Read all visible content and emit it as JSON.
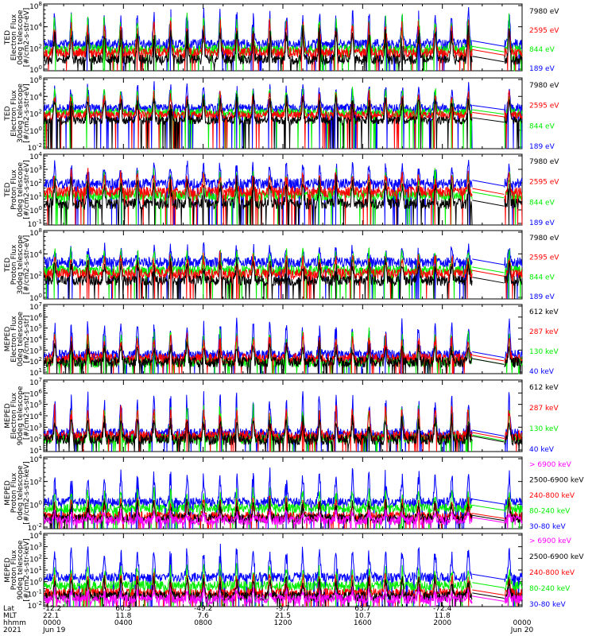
{
  "chart_data": {
    "type": "line",
    "x_axis": {
      "row_labels": [
        "Lat",
        "MLT",
        "hhmm",
        "2021"
      ],
      "ticks": [
        {
          "lat": "-12.2",
          "mlt": "22.1",
          "hhmm": "0000",
          "date": "Jun 19"
        },
        {
          "lat": "60.5",
          "mlt": "11.8",
          "hhmm": "0400",
          "date": ""
        },
        {
          "lat": "-49.2",
          "mlt": "7.6",
          "hhmm": "0800",
          "date": ""
        },
        {
          "lat": "-9.7",
          "mlt": "21.5",
          "hhmm": "1200",
          "date": ""
        },
        {
          "lat": "63.7",
          "mlt": "10.7",
          "hhmm": "1600",
          "date": ""
        },
        {
          "lat": "-72.4",
          "mlt": "11.8",
          "hhmm": "2000",
          "date": ""
        },
        {
          "lat": "",
          "mlt": "",
          "hhmm": "0000",
          "date": "Jun 20"
        }
      ],
      "range_hours": [
        0,
        24
      ],
      "data_gap_hours": [
        21.5,
        23.1
      ]
    },
    "panels": [
      {
        "id": "ted-electron-0deg",
        "ylabel": [
          "TED",
          "Electron Flux",
          "0deg telescope",
          "[#/cm2-s-str-eV]"
        ],
        "ytick_labels": [
          "10^8",
          "10^4",
          "10^2",
          "10^0"
        ],
        "ylim_log10": [
          0,
          6
        ],
        "series": [
          {
            "name": "7980 eV",
            "color": "#000000",
            "baseline_log10": 1.0,
            "spike_log10": 4.0
          },
          {
            "name": "2595 eV",
            "color": "#ff0000",
            "baseline_log10": 1.6,
            "spike_log10": 4.6
          },
          {
            "name": "844 eV",
            "color": "#00ee00",
            "baseline_log10": 1.9,
            "spike_log10": 5.0
          },
          {
            "name": "189 eV",
            "color": "#0000ff",
            "baseline_log10": 2.4,
            "spike_log10": 5.6
          }
        ]
      },
      {
        "id": "ted-electron-30deg",
        "ylabel": [
          "TED",
          "Electron Flux",
          "30deg telescope",
          "[#/cm2-s-str-eV]"
        ],
        "ytick_labels": [
          "10^8",
          "10^4",
          "10^2",
          "10^0",
          "10^-2"
        ],
        "ylim_log10": [
          -2,
          6
        ],
        "series": [
          {
            "name": "7980 eV",
            "color": "#000000",
            "baseline_log10": 1.2,
            "spike_log10": 4.0
          },
          {
            "name": "2595 eV",
            "color": "#ff0000",
            "baseline_log10": 1.8,
            "spike_log10": 4.5
          },
          {
            "name": "844 eV",
            "color": "#00ee00",
            "baseline_log10": 2.1,
            "spike_log10": 4.9
          },
          {
            "name": "189 eV",
            "color": "#0000ff",
            "baseline_log10": 2.6,
            "spike_log10": 5.4
          }
        ]
      },
      {
        "id": "ted-proton-0deg",
        "ylabel": [
          "TED",
          "Proton Flux",
          "0deg telescope",
          "[#/cm2-s-str-eV]"
        ],
        "ytick_labels": [
          "10^4",
          "10^3",
          "10^2",
          "10^1",
          "10^0",
          "10^-1"
        ],
        "ylim_log10": [
          -1.5,
          4.5
        ],
        "series": [
          {
            "name": "7980 eV",
            "color": "#000000",
            "baseline_log10": 0.3,
            "spike_log10": 2.5
          },
          {
            "name": "2595 eV",
            "color": "#ff0000",
            "baseline_log10": 1.3,
            "spike_log10": 3.0
          },
          {
            "name": "844 eV",
            "color": "#00ee00",
            "baseline_log10": 1.0,
            "spike_log10": 3.2
          },
          {
            "name": "189 eV",
            "color": "#0000ff",
            "baseline_log10": 2.0,
            "spike_log10": 3.8
          }
        ]
      },
      {
        "id": "ted-proton-30deg",
        "ylabel": [
          "TED",
          "Proton Flux",
          "30deg telescope",
          "[#/cm2-s-str-eV]"
        ],
        "ytick_labels": [
          "10^8",
          "10^4",
          "10^2",
          "10^0"
        ],
        "ylim_log10": [
          -1,
          5
        ],
        "series": [
          {
            "name": "7980 eV",
            "color": "#000000",
            "baseline_log10": 0.6,
            "spike_log10": 2.4
          },
          {
            "name": "2595 eV",
            "color": "#ff0000",
            "baseline_log10": 1.2,
            "spike_log10": 2.8
          },
          {
            "name": "844 eV",
            "color": "#00ee00",
            "baseline_log10": 1.5,
            "spike_log10": 3.4
          },
          {
            "name": "189 eV",
            "color": "#0000ff",
            "baseline_log10": 2.2,
            "spike_log10": 3.6
          }
        ]
      },
      {
        "id": "meped-electron-0deg",
        "ylabel": [
          "MEPED",
          "Electron Flux",
          "0deg telescope",
          "[#/cm2-s-str]"
        ],
        "ytick_labels": [
          "10^7",
          "10^6",
          "10^5",
          "10^4",
          "10^3",
          "10^2",
          "10^1"
        ],
        "ylim_log10": [
          1,
          7
        ],
        "series": [
          {
            "name": "612 keV",
            "color": "#000000",
            "baseline_log10": 2.0,
            "spike_log10": 3.6
          },
          {
            "name": "287 keV",
            "color": "#ff0000",
            "baseline_log10": 2.3,
            "spike_log10": 4.5
          },
          {
            "name": "130 keV",
            "color": "#00ee00",
            "baseline_log10": 2.0,
            "spike_log10": 4.8
          },
          {
            "name": "40 keV",
            "color": "#0000ff",
            "baseline_log10": 2.6,
            "spike_log10": 5.8
          }
        ]
      },
      {
        "id": "meped-electron-90deg",
        "ylabel": [
          "MEPED",
          "Electron Flux",
          "90deg telescope",
          "[#/cm2-s-str]"
        ],
        "ytick_labels": [
          "10^7",
          "10^6",
          "10^5",
          "10^4",
          "10^3",
          "10^2",
          "10^1"
        ],
        "ylim_log10": [
          1,
          7
        ],
        "series": [
          {
            "name": "612 keV",
            "color": "#000000",
            "baseline_log10": 2.0,
            "spike_log10": 4.0
          },
          {
            "name": "287 keV",
            "color": "#ff0000",
            "baseline_log10": 2.3,
            "spike_log10": 4.8
          },
          {
            "name": "130 keV",
            "color": "#00ee00",
            "baseline_log10": 2.1,
            "spike_log10": 5.0
          },
          {
            "name": "40 keV",
            "color": "#0000ff",
            "baseline_log10": 2.5,
            "spike_log10": 5.9
          }
        ]
      },
      {
        "id": "meped-proton-0deg",
        "ylabel": [
          "MEPED",
          "Proton Flux",
          "0deg telescope",
          "[#/cm2-s-str-keV]"
        ],
        "ytick_labels": [
          "10^4",
          "10^2",
          "10^0",
          "10^-2"
        ],
        "ylim_log10": [
          -2,
          5
        ],
        "series": [
          {
            "name": "> 6900 keV",
            "color": "#ff00ff",
            "baseline_log10": -1.2,
            "spike_log10": -0.3
          },
          {
            "name": "2500-6900 keV",
            "color": "#000000",
            "baseline_log10": -1.0,
            "spike_log10": 0.8
          },
          {
            "name": "240-800 keV",
            "color": "#ff0000",
            "baseline_log10": -0.8,
            "spike_log10": 1.0
          },
          {
            "name": "80-240 keV",
            "color": "#00ee00",
            "baseline_log10": 0.0,
            "spike_log10": 1.8
          },
          {
            "name": "30-80 keV",
            "color": "#0000ff",
            "baseline_log10": 0.6,
            "spike_log10": 3.8
          }
        ]
      },
      {
        "id": "meped-proton-90deg",
        "ylabel": [
          "MEPED",
          "Proton Flux",
          "90deg telescope",
          "[#/cm2-s-str-keV]"
        ],
        "ytick_labels": [
          "10^4",
          "10^3",
          "10^2",
          "10^1",
          "10^0",
          "10^-1",
          "10^-2"
        ],
        "ylim_log10": [
          -2,
          5
        ],
        "series": [
          {
            "name": "> 6900 keV",
            "color": "#ff00ff",
            "baseline_log10": -1.3,
            "spike_log10": -0.4
          },
          {
            "name": "2500-6900 keV",
            "color": "#000000",
            "baseline_log10": -1.0,
            "spike_log10": 0.9
          },
          {
            "name": "240-800 keV",
            "color": "#ff0000",
            "baseline_log10": -0.7,
            "spike_log10": 1.2
          },
          {
            "name": "80-240 keV",
            "color": "#00ee00",
            "baseline_log10": 0.0,
            "spike_log10": 2.0
          },
          {
            "name": "30-80 keV",
            "color": "#0000ff",
            "baseline_log10": 0.8,
            "spike_log10": 3.9
          }
        ]
      }
    ]
  }
}
